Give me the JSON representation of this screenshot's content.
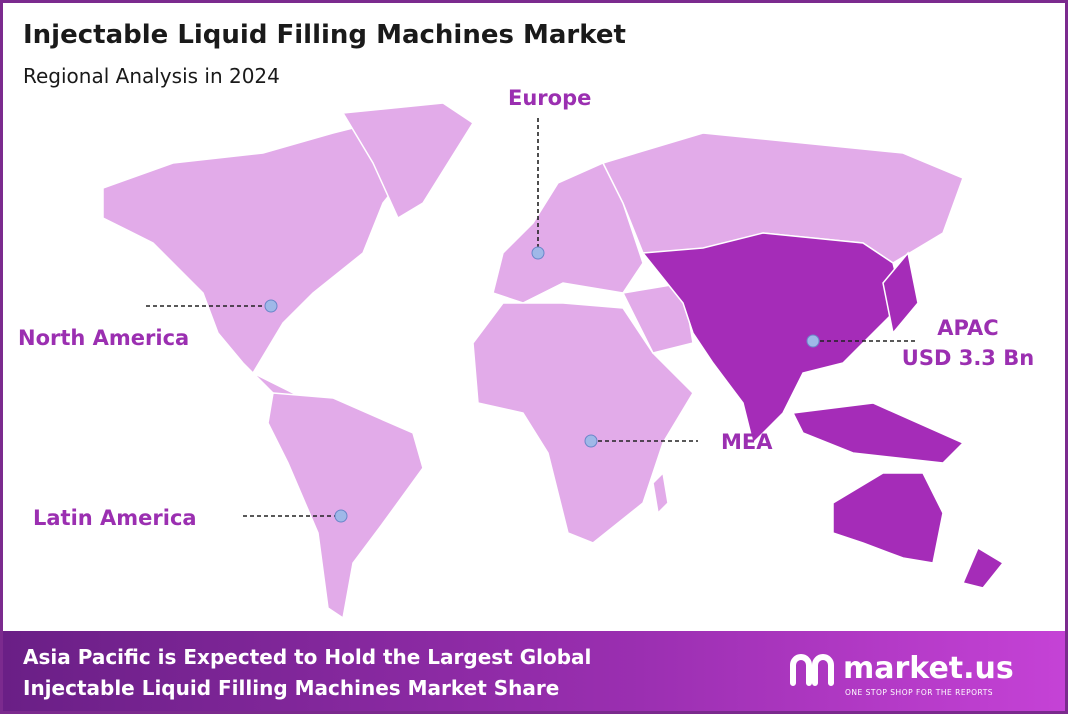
{
  "header": {
    "title": "Injectable Liquid Filling Machines Market",
    "subtitle": "Regional Analysis in 2024"
  },
  "regions": [
    {
      "label": "North America"
    },
    {
      "label": "Europe"
    },
    {
      "label": "Latin America"
    },
    {
      "label": "MEA"
    },
    {
      "label": "APAC",
      "value": "USD 3.3 Bn"
    }
  ],
  "footer": {
    "lines": [
      "Asia Pacific is Expected to Hold the Largest Global",
      "Injectable Liquid Filling Machines Market Share"
    ],
    "logo": "market.us",
    "tagline": "ONE STOP SHOP FOR THE REPORTS"
  }
}
